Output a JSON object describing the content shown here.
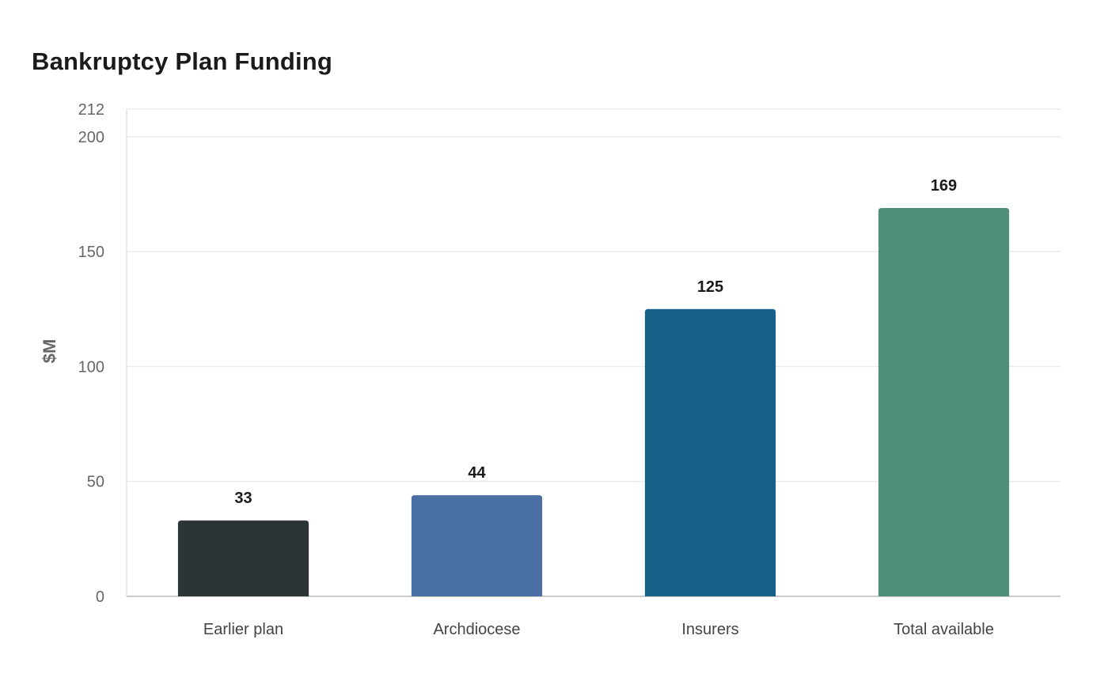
{
  "chart_data": {
    "type": "bar",
    "title": "Bankruptcy Plan Funding",
    "ylabel": "$M",
    "xlabel": "",
    "categories": [
      "Earlier plan",
      "Archdiocese",
      "Insurers",
      "Total available"
    ],
    "values": [
      33,
      44,
      125,
      169
    ],
    "value_labels": [
      "33",
      "44",
      "125",
      "169"
    ],
    "colors": [
      "#2d3436",
      "#4a6fa5",
      "#166088",
      "#4f8f7a"
    ],
    "ylim": [
      0,
      212
    ],
    "yticks": [
      0,
      50,
      100,
      150,
      200,
      212
    ],
    "ytick_labels": [
      "0",
      "50",
      "100",
      "150",
      "200",
      "212"
    ],
    "grid": true,
    "legend": false
  }
}
